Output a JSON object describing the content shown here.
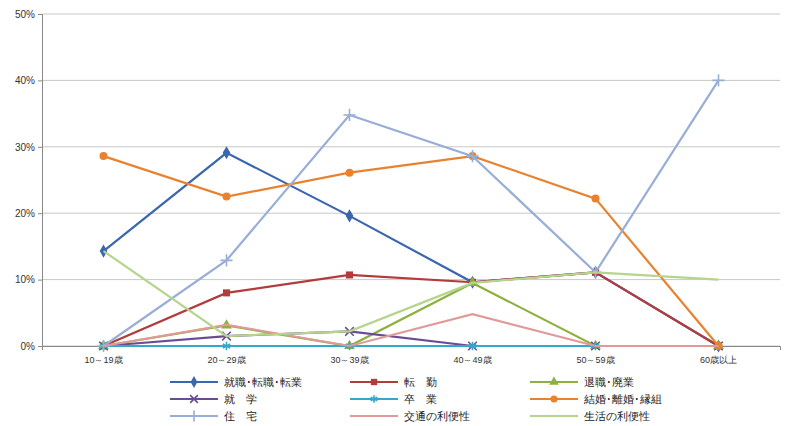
{
  "chart_data": {
    "type": "line",
    "categories": [
      "10～19歳",
      "20～29歳",
      "30～39歳",
      "40～49歳",
      "50～59歳",
      "60歳以上"
    ],
    "ylim": [
      0,
      50
    ],
    "yticks": [
      {
        "value": 0,
        "label": "0%"
      },
      {
        "value": 10,
        "label": "10%"
      },
      {
        "value": 20,
        "label": "20%"
      },
      {
        "value": 30,
        "label": "30%"
      },
      {
        "value": 40,
        "label": "40%"
      },
      {
        "value": 50,
        "label": "50%"
      }
    ],
    "grid": true,
    "legend": "bottom",
    "series": [
      {
        "name": "就職･転職･転業",
        "color": "#3a66b0",
        "marker": "diamond",
        "values": [
          14.3,
          29.1,
          19.6,
          9.6,
          11.1,
          0
        ]
      },
      {
        "name": "転　勤",
        "color": "#b23c3c",
        "marker": "square",
        "values": [
          0,
          8.0,
          10.7,
          9.6,
          11.1,
          0
        ]
      },
      {
        "name": "退職･廃業",
        "color": "#8db03f",
        "marker": "triangle",
        "values": [
          0,
          3.1,
          0,
          9.5,
          0,
          0
        ]
      },
      {
        "name": "就　学",
        "color": "#6a4c94",
        "marker": "x",
        "values": [
          0,
          1.5,
          2.2,
          0,
          0,
          0
        ]
      },
      {
        "name": "卒　業",
        "color": "#33a8c8",
        "marker": "asterisk",
        "values": [
          0,
          0,
          0,
          0,
          0,
          0
        ]
      },
      {
        "name": "結婚･離婚･縁組",
        "color": "#e8822f",
        "marker": "circle",
        "values": [
          28.6,
          22.5,
          26.1,
          28.6,
          22.2,
          0
        ]
      },
      {
        "name": "住　宅",
        "color": "#98aed6",
        "marker": "plus",
        "values": [
          0,
          12.9,
          34.8,
          28.6,
          11.1,
          40.0
        ]
      },
      {
        "name": "交通の利便性",
        "color": "#e09a99",
        "marker": "none",
        "values": [
          0,
          3.2,
          0,
          4.8,
          0,
          0
        ]
      },
      {
        "name": "生活の利便性",
        "color": "#b5d48c",
        "marker": "none",
        "values": [
          14.3,
          1.5,
          2.2,
          9.5,
          11.1,
          10.0
        ]
      }
    ]
  }
}
